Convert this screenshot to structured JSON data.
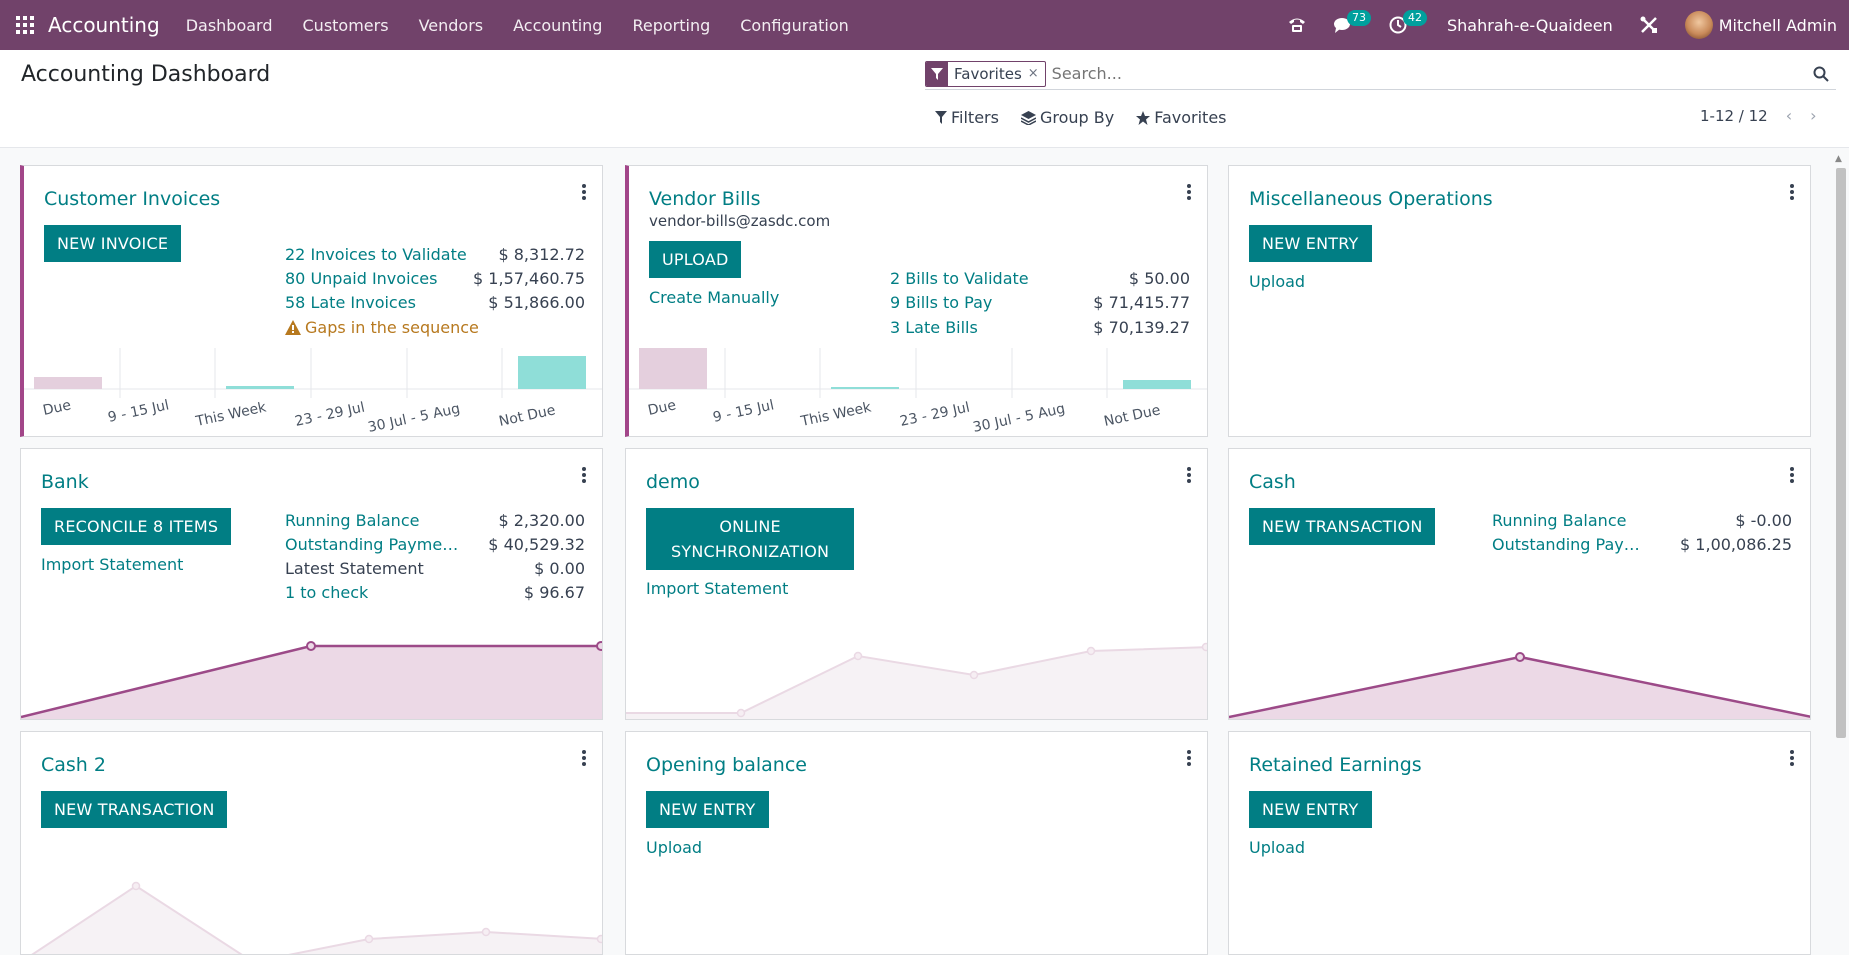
{
  "navbar": {
    "brand": "Accounting",
    "menu": [
      "Dashboard",
      "Customers",
      "Vendors",
      "Accounting",
      "Reporting",
      "Configuration"
    ],
    "messages_count": "73",
    "activities_count": "42",
    "company": "Shahrah-e-Quaideen",
    "user": "Mitchell Admin"
  },
  "control": {
    "title": "Accounting Dashboard",
    "facet": "Favorites",
    "facet_close": "×",
    "search_placeholder": "Search...",
    "filters": "Filters",
    "group_by": "Group By",
    "favorites": "Favorites",
    "pager": "1-12 / 12"
  },
  "colors": {
    "navbar": "#71426a",
    "primary": "#017e84",
    "accent": "#a24689",
    "bar_past": "#e4cfdd",
    "bar_future": "#8fded8"
  },
  "cards": {
    "customer_invoices": {
      "title": "Customer Invoices",
      "button": "New Invoice",
      "stats": [
        {
          "label": "22 Invoices to Validate",
          "value": "$ 8,312.72"
        },
        {
          "label": "80 Unpaid Invoices",
          "value": "$ 1,57,460.75"
        },
        {
          "label": "58 Late Invoices",
          "value": "$ 51,866.00"
        }
      ],
      "warning": "Gaps in the sequence",
      "chart_ticks": [
        "Due",
        "9 - 15 Jul",
        "This Week",
        "23 - 29 Jul",
        "30 Jul - 5 Aug",
        "Not Due"
      ]
    },
    "vendor_bills": {
      "title": "Vendor Bills",
      "email": "vendor-bills@zasdc.com",
      "button": "Upload",
      "create": "Create Manually",
      "stats": [
        {
          "label": "2 Bills to Validate",
          "value": "$ 50.00"
        },
        {
          "label": "9 Bills to Pay",
          "value": "$ 71,415.77"
        },
        {
          "label": "3 Late Bills",
          "value": "$ 70,139.27"
        }
      ],
      "chart_ticks": [
        "Due",
        "9 - 15 Jul",
        "This Week",
        "23 - 29 Jul",
        "30 Jul - 5 Aug",
        "Not Due"
      ]
    },
    "misc": {
      "title": "Miscellaneous Operations",
      "button": "New Entry",
      "upload": "Upload"
    },
    "bank": {
      "title": "Bank",
      "button": "Reconcile 8 Items",
      "import": "Import Statement",
      "stats": [
        {
          "label": "Running Balance",
          "value": "$ 2,320.00"
        },
        {
          "label": "Outstanding Paymen...",
          "value": "$ 40,529.32"
        },
        {
          "label": "Latest Statement",
          "value": "$ 0.00"
        },
        {
          "label": "1 to check",
          "value": "$ 96.67"
        }
      ]
    },
    "demo": {
      "title": "demo",
      "button_line1": "Online",
      "button_line2": "Synchronization",
      "import": "Import Statement"
    },
    "cash": {
      "title": "Cash",
      "button": "New Transaction",
      "stats": [
        {
          "label": "Running Balance",
          "value": "$ -0.00"
        },
        {
          "label": "Outstanding Paym...",
          "value": "$ 1,00,086.25"
        }
      ]
    },
    "cash2": {
      "title": "Cash 2",
      "button": "New Transaction"
    },
    "opening": {
      "title": "Opening balance",
      "button": "New Entry",
      "upload": "Upload"
    },
    "retained": {
      "title": "Retained Earnings",
      "button": "New Entry",
      "upload": "Upload"
    }
  }
}
